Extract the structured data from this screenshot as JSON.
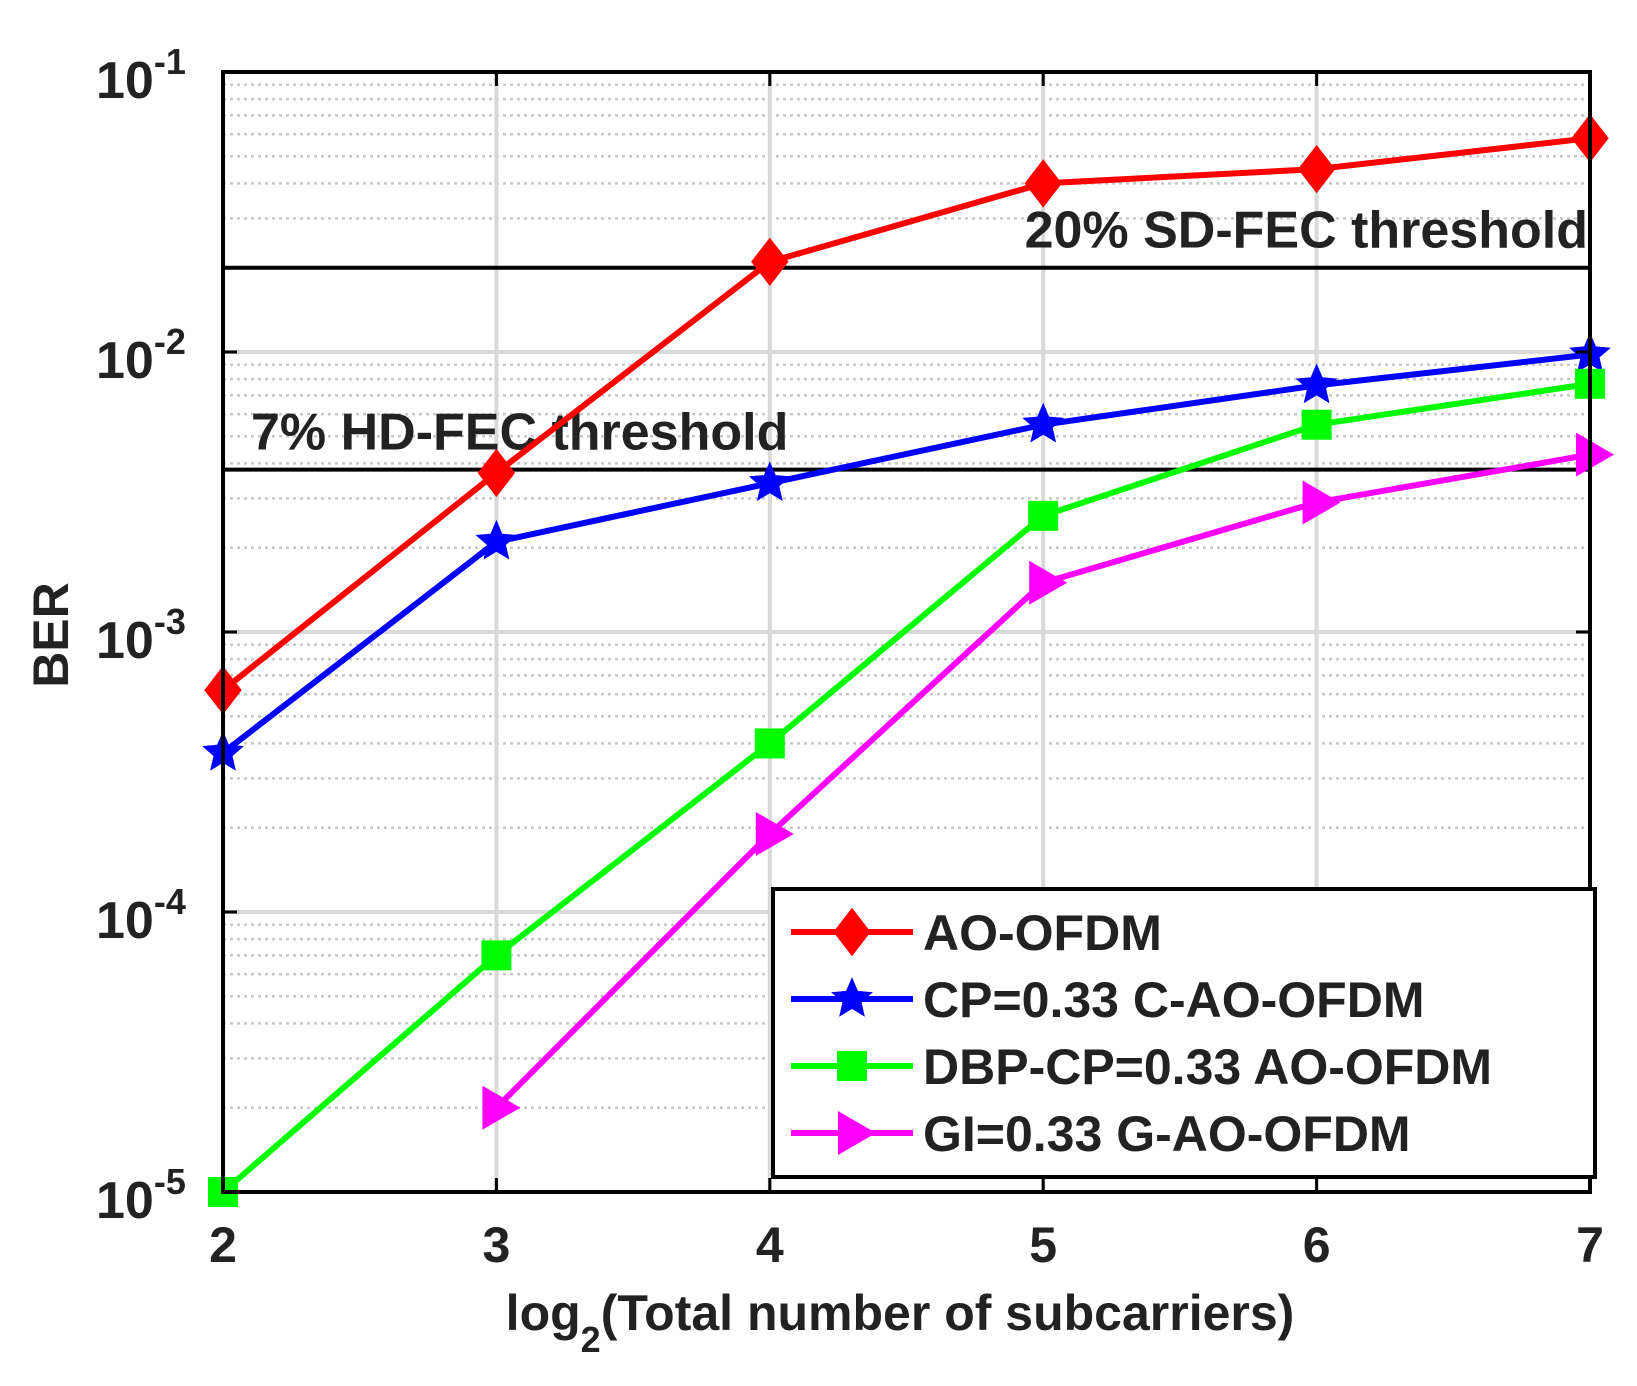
{
  "chart_data": {
    "type": "line",
    "xlabel": {
      "main": "log",
      "sub": "2",
      "rest": "(Total number of subcarriers)"
    },
    "ylabel": "BER",
    "yscale": "log",
    "xlim": [
      2,
      7
    ],
    "ylim": [
      1e-05,
      0.1
    ],
    "x_ticks": [
      {
        "value": 2,
        "label": "2"
      },
      {
        "value": 3,
        "label": "3"
      },
      {
        "value": 4,
        "label": "4"
      },
      {
        "value": 5,
        "label": "5"
      },
      {
        "value": 6,
        "label": "6"
      },
      {
        "value": 7,
        "label": "7"
      }
    ],
    "y_ticks": [
      {
        "value": 0.1,
        "base": "10",
        "exp": "-1"
      },
      {
        "value": 0.01,
        "base": "10",
        "exp": "-2"
      },
      {
        "value": 0.001,
        "base": "10",
        "exp": "-3"
      },
      {
        "value": 0.0001,
        "base": "10",
        "exp": "-4"
      },
      {
        "value": 1e-05,
        "base": "10",
        "exp": "-5"
      }
    ],
    "grid": true,
    "legend_position": "bottom-right",
    "series": [
      {
        "name": "AO-OFDM",
        "color": "#ff0000",
        "marker": "diamond",
        "x": [
          2,
          3,
          4,
          5,
          6,
          7
        ],
        "values": [
          0.00062,
          0.0037,
          0.021,
          0.04,
          0.045,
          0.058
        ]
      },
      {
        "name": "CP=0.33 C-AO-OFDM",
        "color": "#0000ff",
        "marker": "star",
        "x": [
          2,
          3,
          4,
          5,
          6,
          7
        ],
        "values": [
          0.00037,
          0.0021,
          0.0034,
          0.0055,
          0.0076,
          0.0098
        ]
      },
      {
        "name": "DBP-CP=0.33 AO-OFDM",
        "color": "#00ff00",
        "marker": "square",
        "x": [
          2,
          3,
          4,
          5,
          6,
          7
        ],
        "values": [
          1e-05,
          7e-05,
          0.0004,
          0.0026,
          0.0055,
          0.0077
        ]
      },
      {
        "name": "GI=0.33 G-AO-OFDM",
        "color": "#ff00ff",
        "marker": "triangle-right",
        "x": [
          3,
          4,
          5,
          6,
          7
        ],
        "values": [
          2e-05,
          0.00019,
          0.0015,
          0.0029,
          0.0043
        ]
      }
    ],
    "thresholds": [
      {
        "value": 0.02,
        "label": "20% SD-FEC threshold",
        "label_anchor": "end"
      },
      {
        "value": 0.0038,
        "label": "7% HD-FEC threshold",
        "label_anchor": "start"
      }
    ]
  }
}
